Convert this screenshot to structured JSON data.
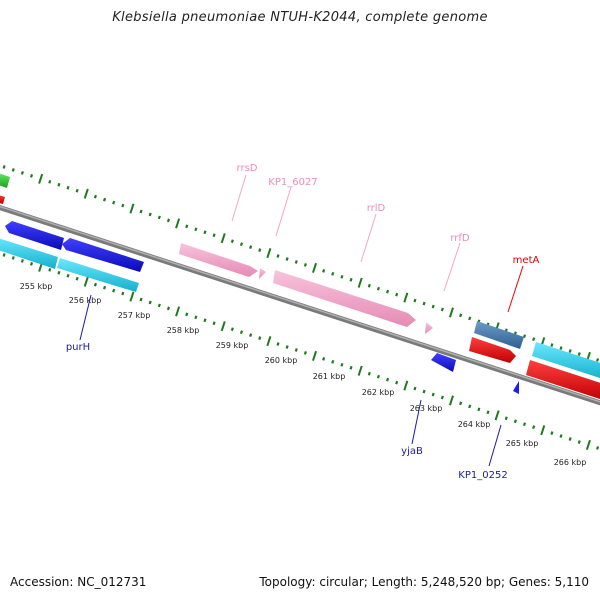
{
  "title": "Klebsiella pneumoniae NTUH-K2044, complete genome",
  "footer": {
    "accession": "Accession: NC_012731",
    "summary": "Topology: circular; Length: 5,248,520 bp; Genes: 5,110"
  },
  "ticks": [
    "255 kbp",
    "256 kbp",
    "257 kbp",
    "258 kbp",
    "259 kbp",
    "260 kbp",
    "261 kbp",
    "262 kbp",
    "263 kbp",
    "264 kbp",
    "265 kbp",
    "266 kbp"
  ],
  "gene_labels": {
    "rrsD": "rrsD",
    "KP1_6027": "KP1_6027",
    "rrlD": "rrlD",
    "rrfD": "rrfD",
    "metA": "metA",
    "purH": "purH",
    "yjaB": "yjaB",
    "KP1_0252": "KP1_0252"
  },
  "colors": {
    "rrna": "#f4a6c8",
    "cds_blue": "#1a1aff",
    "cds_cyan": "#22d8f0",
    "cds_red": "#ff1a1a",
    "cds_steel": "#4a7fb0",
    "cds_green": "#33cc33",
    "tick_green": "#1e7a1e",
    "backbone": "#888888"
  }
}
